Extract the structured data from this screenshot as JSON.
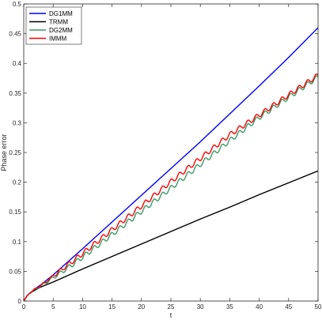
{
  "chart_data": {
    "type": "line",
    "title": "",
    "xlabel": "t",
    "ylabel": "Phase error",
    "xlim": [
      0,
      50
    ],
    "ylim": [
      0,
      0.5
    ],
    "xticks": [
      "0",
      "5",
      "10",
      "15",
      "20",
      "25",
      "30",
      "35",
      "40",
      "45",
      "50"
    ],
    "yticks": [
      "0",
      "0.05",
      "0.1",
      "0.15",
      "0.2",
      "0.25",
      "0.3",
      "0.35",
      "0.4",
      "0.45",
      "0.5"
    ],
    "grid": false,
    "legend_position": "top-left",
    "series": [
      {
        "name": "DG1MM",
        "color": "#0000ff",
        "x": [
          0,
          0.5,
          1,
          2,
          3,
          5,
          7.5,
          10,
          15,
          20,
          25,
          30,
          35,
          40,
          45,
          50
        ],
        "y": [
          0,
          0.008,
          0.013,
          0.021,
          0.028,
          0.044,
          0.066,
          0.088,
          0.133,
          0.178,
          0.223,
          0.268,
          0.315,
          0.362,
          0.41,
          0.46
        ]
      },
      {
        "name": "TRMM",
        "color": "#000000",
        "x": [
          0,
          0.5,
          1,
          2,
          3,
          5,
          7.5,
          10,
          15,
          20,
          25,
          30,
          35,
          40,
          45,
          50
        ],
        "y": [
          0,
          0.008,
          0.013,
          0.019,
          0.024,
          0.032,
          0.043,
          0.054,
          0.075,
          0.096,
          0.117,
          0.138,
          0.158,
          0.179,
          0.199,
          0.219
        ]
      },
      {
        "name": "DG2MM",
        "color": "#3a9a64",
        "x": [
          0,
          0.5,
          1,
          2,
          3,
          5,
          7.5,
          10,
          15,
          20,
          25,
          30,
          35,
          40,
          45,
          50
        ],
        "y": [
          0,
          0.008,
          0.013,
          0.02,
          0.026,
          0.039,
          0.056,
          0.074,
          0.112,
          0.151,
          0.19,
          0.23,
          0.27,
          0.309,
          0.343,
          0.377
        ]
      },
      {
        "name": "IMMM",
        "color": "#ff0000",
        "x": [
          0,
          0.5,
          1,
          2,
          3,
          5,
          7.5,
          10,
          15,
          20,
          25,
          30,
          35,
          40,
          45,
          50
        ],
        "y": [
          0,
          0.008,
          0.013,
          0.021,
          0.027,
          0.042,
          0.061,
          0.08,
          0.12,
          0.16,
          0.201,
          0.24,
          0.28,
          0.313,
          0.347,
          0.38
        ]
      }
    ]
  }
}
